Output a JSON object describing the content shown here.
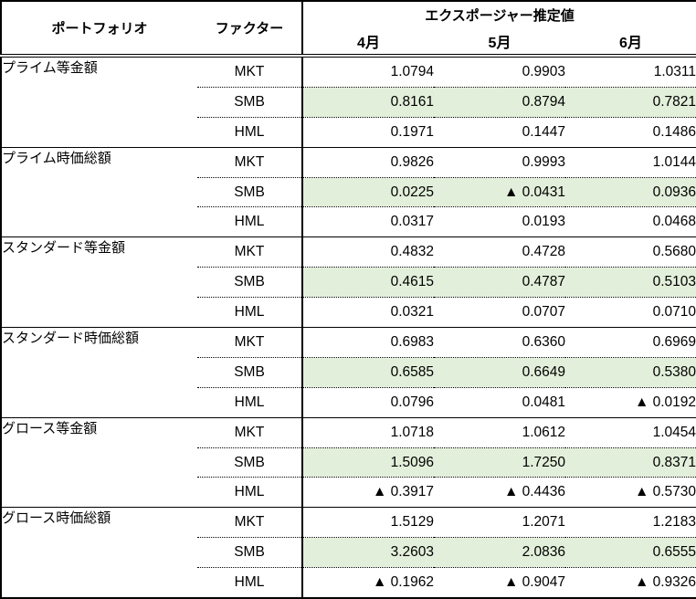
{
  "table": {
    "header": {
      "portfolio": "ポートフォリオ",
      "factor": "ファクター",
      "exposure": "エクスポージャー推定値",
      "months": [
        "4月",
        "5月",
        "6月"
      ]
    },
    "negative_marker": "▲",
    "colors": {
      "highlight_green": "#E2EFDA",
      "border": "#000000",
      "text": "#000000"
    },
    "sections": [
      {
        "portfolio": "プライム等金額",
        "rows": [
          {
            "factor": "MKT",
            "highlight": false,
            "values": [
              "1.0794",
              "0.9903",
              "1.0311"
            ]
          },
          {
            "factor": "SMB",
            "highlight": true,
            "values": [
              "0.8161",
              "0.8794",
              "0.7821"
            ]
          },
          {
            "factor": "HML",
            "highlight": false,
            "values": [
              "0.1971",
              "0.1447",
              "0.1486"
            ]
          }
        ]
      },
      {
        "portfolio": "プライム時価総額",
        "rows": [
          {
            "factor": "MKT",
            "highlight": false,
            "values": [
              "0.9826",
              "0.9993",
              "1.0144"
            ]
          },
          {
            "factor": "SMB",
            "highlight": true,
            "values": [
              "0.0225",
              "▲ 0.0431",
              "0.0936"
            ]
          },
          {
            "factor": "HML",
            "highlight": false,
            "values": [
              "0.0317",
              "0.0193",
              "0.0468"
            ]
          }
        ]
      },
      {
        "portfolio": "スタンダード等金額",
        "rows": [
          {
            "factor": "MKT",
            "highlight": false,
            "values": [
              "0.4832",
              "0.4728",
              "0.5680"
            ]
          },
          {
            "factor": "SMB",
            "highlight": true,
            "values": [
              "0.4615",
              "0.4787",
              "0.5103"
            ]
          },
          {
            "factor": "HML",
            "highlight": false,
            "values": [
              "0.0321",
              "0.0707",
              "0.0710"
            ]
          }
        ]
      },
      {
        "portfolio": "スタンダード時価総額",
        "rows": [
          {
            "factor": "MKT",
            "highlight": false,
            "values": [
              "0.6983",
              "0.6360",
              "0.6969"
            ]
          },
          {
            "factor": "SMB",
            "highlight": true,
            "values": [
              "0.6585",
              "0.6649",
              "0.5380"
            ]
          },
          {
            "factor": "HML",
            "highlight": false,
            "values": [
              "0.0796",
              "0.0481",
              "▲ 0.0192"
            ]
          }
        ]
      },
      {
        "portfolio": "グロース等金額",
        "rows": [
          {
            "factor": "MKT",
            "highlight": false,
            "values": [
              "1.0718",
              "1.0612",
              "1.0454"
            ]
          },
          {
            "factor": "SMB",
            "highlight": true,
            "values": [
              "1.5096",
              "1.7250",
              "0.8371"
            ]
          },
          {
            "factor": "HML",
            "highlight": false,
            "values": [
              "▲ 0.3917",
              "▲ 0.4436",
              "▲ 0.5730"
            ]
          }
        ]
      },
      {
        "portfolio": "グロース時価総額",
        "rows": [
          {
            "factor": "MKT",
            "highlight": false,
            "values": [
              "1.5129",
              "1.2071",
              "1.2183"
            ]
          },
          {
            "factor": "SMB",
            "highlight": true,
            "values": [
              "3.2603",
              "2.0836",
              "0.6555"
            ]
          },
          {
            "factor": "HML",
            "highlight": false,
            "values": [
              "▲ 0.1962",
              "▲ 0.9047",
              "▲ 0.9326"
            ]
          }
        ]
      }
    ]
  }
}
